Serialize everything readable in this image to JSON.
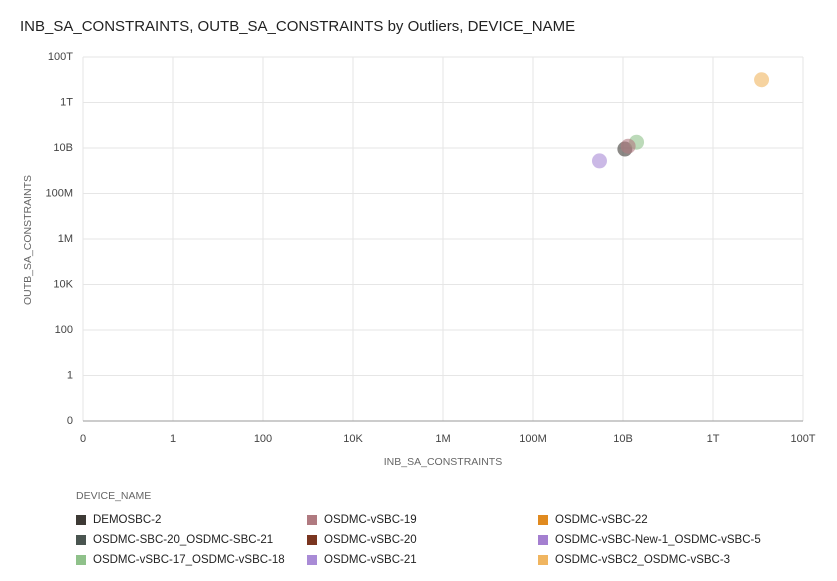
{
  "chart_data": {
    "type": "scatter",
    "title": "INB_SA_CONSTRAINTS, OUTB_SA_CONSTRAINTS by Outliers, DEVICE_NAME",
    "x_label": "INB_SA_CONSTRAINTS",
    "y_label": "OUTB_SA_CONSTRAINTS",
    "legend_title": "DEVICE_NAME",
    "log_scale": true,
    "grid": true,
    "xlim": [
      0,
      100000000000000
    ],
    "ylim": [
      0,
      100000000000000
    ],
    "xticks": [
      0,
      1,
      100,
      {
        "value": 10000,
        "label": "10K"
      },
      {
        "value": 1000000,
        "label": "1M"
      },
      {
        "value": 100000000,
        "label": "100M"
      },
      {
        "value": 10000000000,
        "label": "10B"
      },
      {
        "value": 1000000000000,
        "label": "1T"
      },
      {
        "value": 100000000000000,
        "label": "100T"
      }
    ],
    "yticks": [
      0,
      1,
      100,
      {
        "value": 10000,
        "label": "10K"
      },
      {
        "value": 1000000,
        "label": "1M"
      },
      {
        "value": 100000000,
        "label": "100M"
      },
      {
        "value": 10000000000,
        "label": "10B"
      },
      {
        "value": 1000000000000,
        "label": "1T"
      },
      {
        "value": 100000000000000,
        "label": "100T"
      }
    ],
    "series": [
      {
        "name": "DEMOSBC-2",
        "color": "#3d3a35",
        "x": [
          11000000000
        ],
        "y": [
          9000000000
        ]
      },
      {
        "name": "OSDMC-SBC-20_OSDMC-SBC-21",
        "color": "#4a5550",
        "x": [],
        "y": []
      },
      {
        "name": "OSDMC-vSBC-17_OSDMC-vSBC-18",
        "color": "#8fc18a",
        "x": [
          20000000000
        ],
        "y": [
          18000000000
        ]
      },
      {
        "name": "OSDMC-vSBC-19",
        "color": "#b07a80",
        "x": [
          13000000000
        ],
        "y": [
          12000000000
        ]
      },
      {
        "name": "OSDMC-vSBC-20",
        "color": "#7a3520",
        "x": [],
        "y": []
      },
      {
        "name": "OSDMC-vSBC-21",
        "color": "#a98bd6",
        "x": [
          3000000000
        ],
        "y": [
          2700000000
        ]
      },
      {
        "name": "OSDMC-vSBC-22",
        "color": "#e08a20",
        "x": [],
        "y": []
      },
      {
        "name": "OSDMC-vSBC-New-1_OSDMC-vSBC-5",
        "color": "#a47fd0",
        "x": [],
        "y": []
      },
      {
        "name": "OSDMC-vSBC2_OSDMC-vSBC-3",
        "color": "#f0b560",
        "x": [
          12000000000000
        ],
        "y": [
          10000000000000
        ]
      }
    ]
  }
}
